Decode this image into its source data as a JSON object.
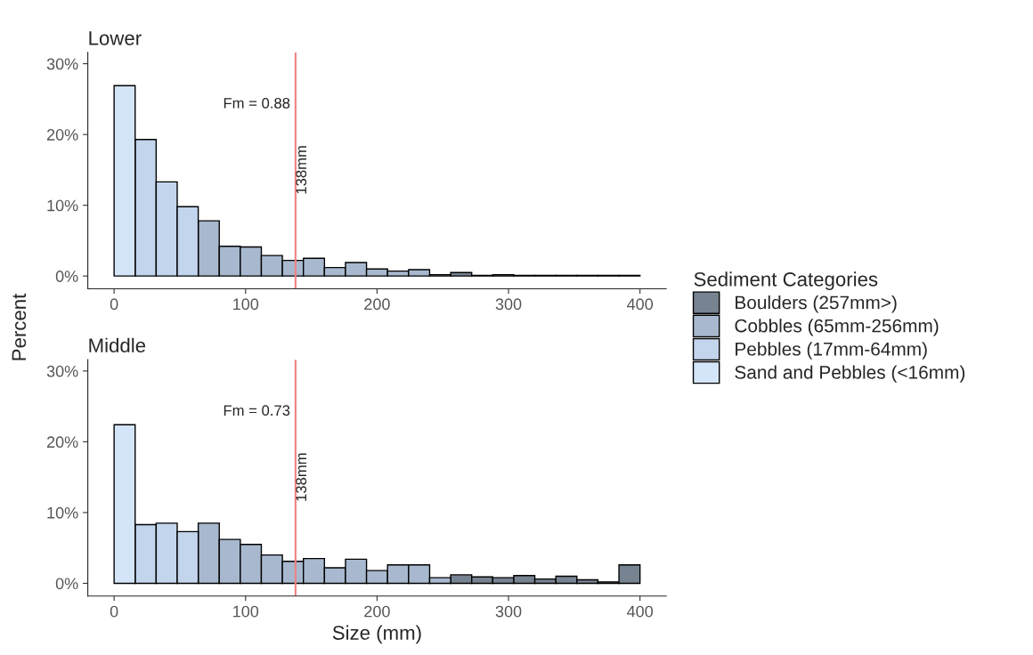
{
  "chart_data": [
    {
      "type": "histogram",
      "title": "Lower",
      "ylabel": "Percent",
      "legend_title": "Sediment Categories",
      "legend": "right",
      "bins": [
        0,
        16,
        32,
        48,
        64,
        80,
        96,
        112,
        128,
        144,
        160,
        176,
        192,
        208,
        224,
        240,
        256,
        272,
        288,
        304,
        320,
        336,
        352,
        368,
        384,
        400
      ],
      "series": [
        {
          "name": "Boulders (257mm>)",
          "color": "#778391",
          "values": [
            null,
            null,
            null,
            null,
            null,
            null,
            null,
            null,
            null,
            null,
            null,
            null,
            null,
            null,
            null,
            null,
            0.5,
            0.1,
            0.2,
            0.1,
            0.1,
            0.1,
            0.1,
            0.1,
            0.1
          ]
        },
        {
          "name": "Cobbles (65mm-256mm)",
          "color": "#a8b9cf",
          "values": [
            null,
            null,
            null,
            null,
            7.8,
            4.2,
            4.1,
            2.9,
            2.2,
            2.5,
            1.2,
            1.9,
            1.0,
            0.7,
            0.9,
            0.2,
            null,
            null,
            null,
            null,
            null,
            null,
            null,
            null,
            null
          ]
        },
        {
          "name": "Pebbles (17mm-64mm)",
          "color": "#c2d5ec",
          "values": [
            null,
            19.3,
            13.3,
            9.8,
            null,
            null,
            null,
            null,
            null,
            null,
            null,
            null,
            null,
            null,
            null,
            null,
            null,
            null,
            null,
            null,
            null,
            null,
            null,
            null,
            null
          ]
        },
        {
          "name": "Sand and Pebbles (<16mm)",
          "color": "#d4e4f9",
          "values": [
            26.9,
            null,
            null,
            null,
            null,
            null,
            null,
            null,
            null,
            null,
            null,
            null,
            null,
            null,
            null,
            null,
            null,
            null,
            null,
            null,
            null,
            null,
            null,
            null,
            null
          ]
        }
      ],
      "xlim": [
        -20,
        420
      ],
      "xticks": [
        0,
        100,
        200,
        300,
        400
      ],
      "ylim": [
        -1.8,
        31.6
      ],
      "yticks": [
        {
          "value": 0,
          "label": "0%"
        },
        {
          "value": 10,
          "label": "10%"
        },
        {
          "value": 20,
          "label": "20%"
        },
        {
          "value": 30,
          "label": "30%"
        }
      ],
      "ref_lines": [
        {
          "axis": "x",
          "value": 138,
          "label": "138mm",
          "color": "#f08080"
        }
      ],
      "annotations": [
        "Fm = 0.88"
      ],
      "grid": false
    },
    {
      "type": "histogram",
      "title": "Middle",
      "xlabel": "Size (mm)",
      "bins": [
        0,
        16,
        32,
        48,
        64,
        80,
        96,
        112,
        128,
        144,
        160,
        176,
        192,
        208,
        224,
        240,
        256,
        272,
        288,
        304,
        320,
        336,
        352,
        368,
        384,
        400
      ],
      "series": [
        {
          "color": "#778391",
          "values": [
            null,
            null,
            null,
            null,
            null,
            null,
            null,
            null,
            null,
            null,
            null,
            null,
            null,
            null,
            null,
            null,
            1.2,
            0.9,
            0.8,
            1.1,
            0.6,
            1.0,
            0.5,
            0.2,
            2.6
          ]
        },
        {
          "color": "#a8b9cf",
          "values": [
            null,
            null,
            null,
            null,
            8.5,
            6.2,
            5.5,
            4.0,
            3.1,
            3.5,
            2.2,
            3.4,
            1.8,
            2.6,
            2.6,
            0.8,
            null,
            null,
            null,
            null,
            null,
            null,
            null,
            null,
            null
          ]
        },
        {
          "color": "#c2d5ec",
          "values": [
            null,
            8.3,
            8.5,
            7.3,
            null,
            null,
            null,
            null,
            null,
            null,
            null,
            null,
            null,
            null,
            null,
            null,
            null,
            null,
            null,
            null,
            null,
            null,
            null,
            null,
            null
          ]
        },
        {
          "color": "#d4e4f9",
          "values": [
            22.4,
            null,
            null,
            null,
            null,
            null,
            null,
            null,
            null,
            null,
            null,
            null,
            null,
            null,
            null,
            null,
            null,
            null,
            null,
            null,
            null,
            null,
            null,
            null,
            null
          ]
        }
      ],
      "xlim": [
        -20,
        420
      ],
      "xticks": [
        0,
        100,
        200,
        300,
        400
      ],
      "ylim": [
        -1.8,
        31.6
      ],
      "yticks": [
        {
          "value": 0,
          "label": "0%"
        },
        {
          "value": 10,
          "label": "10%"
        },
        {
          "value": 20,
          "label": "20%"
        },
        {
          "value": 30,
          "label": "30%"
        }
      ],
      "ref_lines": [
        {
          "axis": "x",
          "value": 138,
          "label": "138mm",
          "color": "#f08080"
        }
      ],
      "annotations": [
        "Fm = 0.73"
      ],
      "grid": false
    }
  ]
}
